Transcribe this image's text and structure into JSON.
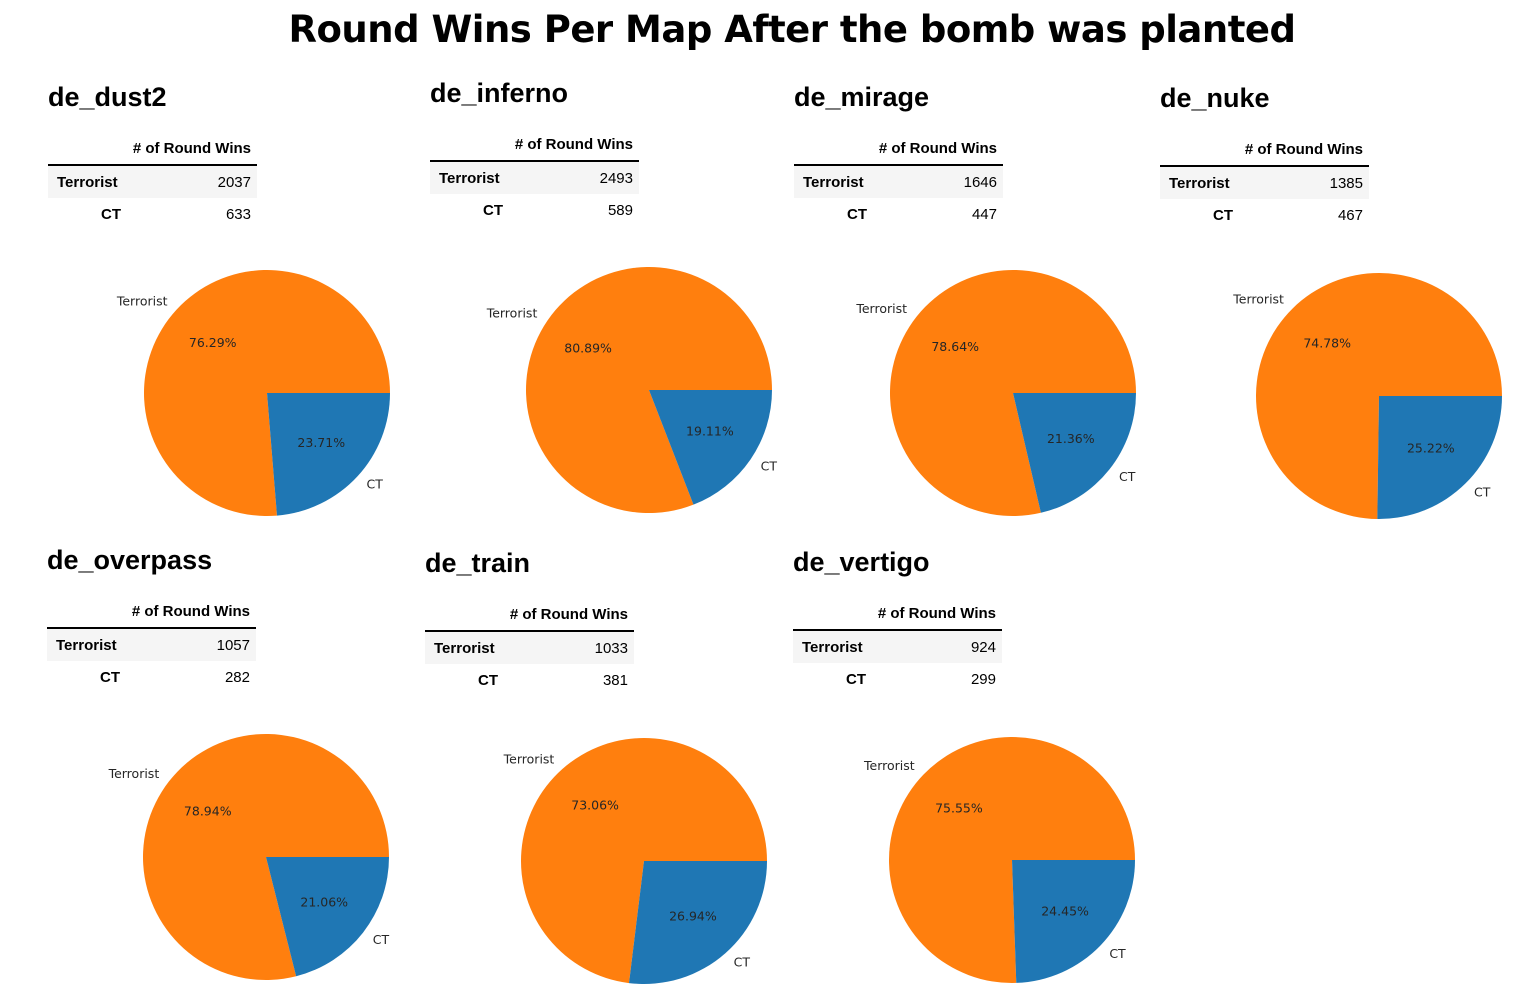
{
  "title": "Round Wins Per Map After the bomb was planted",
  "table_header": "# of Round Wins",
  "colors": {
    "terrorist": "#ff7f0e",
    "ct": "#1f77b4"
  },
  "chart_data": [
    {
      "type": "pie",
      "title": "de_dust2",
      "labels": [
        "Terrorist",
        "CT"
      ],
      "values": [
        2037,
        633
      ],
      "percent_labels": [
        "76.29%",
        "23.71%"
      ]
    },
    {
      "type": "pie",
      "title": "de_inferno",
      "labels": [
        "Terrorist",
        "CT"
      ],
      "values": [
        2493,
        589
      ],
      "percent_labels": [
        "80.89%",
        "19.11%"
      ]
    },
    {
      "type": "pie",
      "title": "de_mirage",
      "labels": [
        "Terrorist",
        "CT"
      ],
      "values": [
        1646,
        447
      ],
      "percent_labels": [
        "78.64%",
        "21.36%"
      ]
    },
    {
      "type": "pie",
      "title": "de_nuke",
      "labels": [
        "Terrorist",
        "CT"
      ],
      "values": [
        1385,
        467
      ],
      "percent_labels": [
        "74.78%",
        "25.22%"
      ]
    },
    {
      "type": "pie",
      "title": "de_overpass",
      "labels": [
        "Terrorist",
        "CT"
      ],
      "values": [
        1057,
        282
      ],
      "percent_labels": [
        "78.94%",
        "21.06%"
      ]
    },
    {
      "type": "pie",
      "title": "de_train",
      "labels": [
        "Terrorist",
        "CT"
      ],
      "values": [
        1033,
        381
      ],
      "percent_labels": [
        "73.06%",
        "26.94%"
      ]
    },
    {
      "type": "pie",
      "title": "de_vertigo",
      "labels": [
        "Terrorist",
        "CT"
      ],
      "values": [
        924,
        299
      ],
      "percent_labels": [
        "75.55%",
        "24.45%"
      ]
    }
  ]
}
